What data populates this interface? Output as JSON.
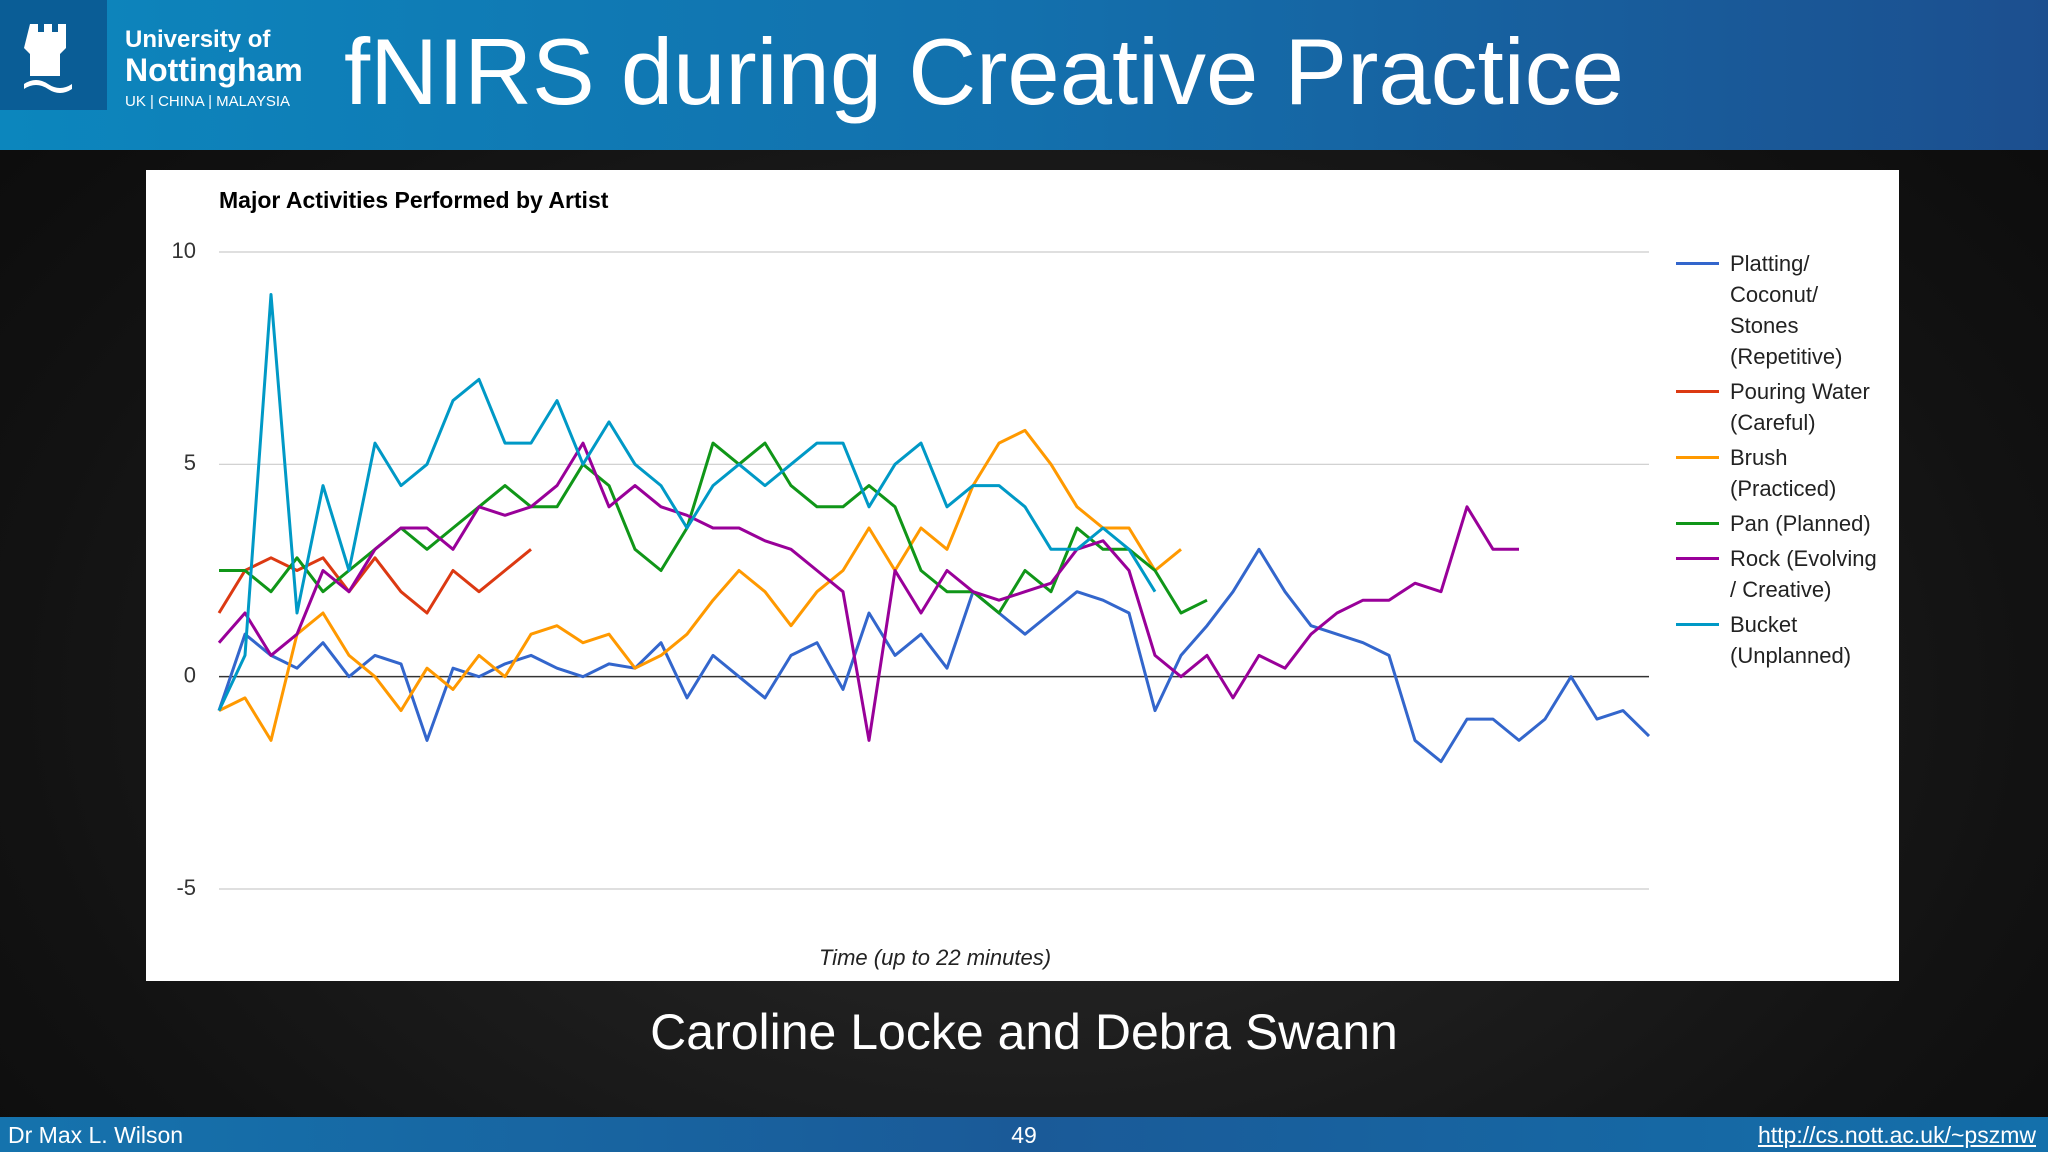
{
  "header": {
    "logo": [
      "University of",
      "Nottingham",
      "UK | CHINA | MALAYSIA"
    ],
    "title": "fNIRS during Creative Practice"
  },
  "chart_data": {
    "type": "line",
    "title": "Major Activities Performed by Artist",
    "x_label": "Time (up to 22 minutes)",
    "categories": [
      null,
      null,
      null,
      null,
      null,
      null,
      null,
      null,
      null,
      null,
      null,
      null,
      null,
      null,
      null,
      null,
      null,
      null,
      null,
      null,
      null,
      null,
      null,
      null,
      null,
      null,
      null,
      null,
      null,
      null,
      null,
      null,
      null,
      null,
      null,
      null,
      null,
      null,
      null,
      null,
      null,
      null,
      null,
      null,
      null,
      null,
      null,
      null,
      null,
      null,
      null,
      null,
      null,
      null,
      null,
      null
    ],
    "ylim": [
      -5,
      10
    ],
    "yticks": [
      -5,
      0,
      5,
      10
    ],
    "grid": true,
    "legend": "right",
    "series": [
      {
        "name": "Platting/ Coconut/ Stones (Repetitive)",
        "color": "#3366cc",
        "values": [
          -0.8,
          1.0,
          0.5,
          0.2,
          0.8,
          0.0,
          0.5,
          0.3,
          -1.5,
          0.2,
          0.0,
          0.3,
          0.5,
          0.2,
          0.0,
          0.3,
          0.2,
          0.8,
          -0.5,
          0.5,
          0.0,
          -0.5,
          0.5,
          0.8,
          -0.3,
          1.5,
          0.5,
          1.0,
          0.2,
          2.0,
          1.5,
          1.0,
          1.5,
          2.0,
          1.8,
          1.5,
          -0.8,
          0.5,
          1.2,
          2.0,
          3.0,
          2.0,
          1.2,
          1.0,
          0.8,
          0.5,
          -1.5,
          -2.0,
          -1.0,
          -1.0,
          -1.5,
          -1.0,
          0.0,
          -1.0,
          -0.8,
          -1.4
        ]
      },
      {
        "name": "Pouring Water (Careful)",
        "color": "#dc3912",
        "values": [
          1.5,
          2.5,
          2.8,
          2.5,
          2.8,
          2.0,
          2.8,
          2.0,
          1.5,
          2.5,
          2.0,
          2.5,
          3.0,
          null,
          null,
          null,
          null,
          null,
          null,
          null,
          null,
          null,
          null,
          null,
          null,
          null,
          null,
          null,
          null,
          null,
          null,
          null,
          null,
          null,
          null,
          null,
          null,
          null,
          null,
          null,
          null,
          null,
          null,
          null,
          null,
          null,
          null,
          null,
          null,
          null,
          null,
          null,
          null,
          null,
          null,
          null
        ]
      },
      {
        "name": "Brush (Practiced)",
        "color": "#ff9900",
        "values": [
          -0.8,
          -0.5,
          -1.5,
          1.0,
          1.5,
          0.5,
          0.0,
          -0.8,
          0.2,
          -0.3,
          0.5,
          0.0,
          1.0,
          1.2,
          0.8,
          1.0,
          0.2,
          0.5,
          1.0,
          1.8,
          2.5,
          2.0,
          1.2,
          2.0,
          2.5,
          3.5,
          2.5,
          3.5,
          3.0,
          4.5,
          5.5,
          5.8,
          5.0,
          4.0,
          3.5,
          3.5,
          2.5,
          3.0,
          null,
          null,
          null,
          null,
          null,
          null,
          null,
          null,
          null,
          null,
          null,
          null,
          null,
          null,
          null,
          null,
          null,
          null
        ]
      },
      {
        "name": "Pan (Planned)",
        "color": "#109618",
        "values": [
          2.5,
          2.5,
          2.0,
          2.8,
          2.0,
          2.5,
          3.0,
          3.5,
          3.0,
          3.5,
          4.0,
          4.5,
          4.0,
          4.0,
          5.0,
          4.5,
          3.0,
          2.5,
          3.5,
          5.5,
          5.0,
          5.5,
          4.5,
          4.0,
          4.0,
          4.5,
          4.0,
          2.5,
          2.0,
          2.0,
          1.5,
          2.5,
          2.0,
          3.5,
          3.0,
          3.0,
          2.5,
          1.5,
          1.8,
          null,
          null,
          null,
          null,
          null,
          null,
          null,
          null,
          null,
          null,
          null,
          null,
          null,
          null,
          null,
          null,
          null
        ]
      },
      {
        "name": "Rock (Evolving / Creative)",
        "color": "#990099",
        "values": [
          0.8,
          1.5,
          0.5,
          1.0,
          2.5,
          2.0,
          3.0,
          3.5,
          3.5,
          3.0,
          4.0,
          3.8,
          4.0,
          4.5,
          5.5,
          4.0,
          4.5,
          4.0,
          3.8,
          3.5,
          3.5,
          3.2,
          3.0,
          2.5,
          2.0,
          -1.5,
          2.5,
          1.5,
          2.5,
          2.0,
          1.8,
          2.0,
          2.2,
          3.0,
          3.2,
          2.5,
          0.5,
          0.0,
          0.5,
          -0.5,
          0.5,
          0.2,
          1.0,
          1.5,
          1.8,
          1.8,
          2.2,
          2.0,
          4.0,
          3.0,
          3.0,
          null,
          null,
          null,
          null,
          null
        ]
      },
      {
        "name": "Bucket (Unplanned)",
        "color": "#0099c6",
        "values": [
          -0.8,
          0.5,
          9.0,
          1.5,
          4.5,
          2.5,
          5.5,
          4.5,
          5.0,
          6.5,
          7.0,
          5.5,
          5.5,
          6.5,
          5.0,
          6.0,
          5.0,
          4.5,
          3.5,
          4.5,
          5.0,
          4.5,
          5.0,
          5.5,
          5.5,
          4.0,
          5.0,
          5.5,
          4.0,
          4.5,
          4.5,
          4.0,
          3.0,
          3.0,
          3.5,
          3.0,
          2.0,
          null,
          null,
          null,
          null,
          null,
          null,
          null,
          null,
          null,
          null,
          null,
          null,
          null,
          null,
          null,
          null,
          null,
          null,
          null
        ]
      }
    ]
  },
  "caption": "Caroline Locke and Debra Swann",
  "footer": {
    "left": "Dr Max L. Wilson",
    "page": "49",
    "link": "http://cs.nott.ac.uk/~pszmw"
  }
}
